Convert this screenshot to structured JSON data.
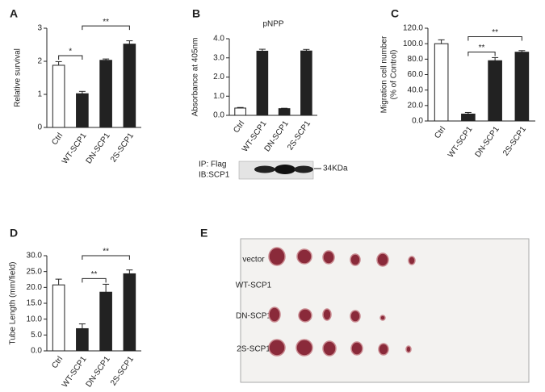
{
  "chart_data": [
    {
      "type": "bar",
      "letter": "A",
      "ylabel": [
        "Relative survival"
      ],
      "categories": [
        "Ctrl",
        "WT-SCP1",
        "DN-SCP1",
        "2S-SCP1"
      ],
      "values": [
        1.88,
        1.02,
        2.03,
        2.52
      ],
      "errors": [
        0.11,
        0.07,
        0.04,
        0.1
      ],
      "colors": [
        "#ffffff",
        "#222222",
        "#222222",
        "#222222"
      ],
      "ylim": [
        0,
        3
      ],
      "yticks": [
        0,
        1,
        2,
        3
      ],
      "annotations": [
        {
          "label": "*",
          "between": [
            "Ctrl",
            "WT-SCP1"
          ]
        },
        {
          "label": "**",
          "between": [
            "WT-SCP1",
            "2S-SCP1"
          ]
        }
      ]
    },
    {
      "type": "bar",
      "letter": "B",
      "title": "pNPP",
      "ylabel": [
        "Absorbance at 405nm"
      ],
      "categories": [
        "Ctrl",
        "WT-SCP1",
        "DN-SCP1",
        "2S-SCP1"
      ],
      "values": [
        0.38,
        3.35,
        0.35,
        3.36
      ],
      "errors": [
        0.03,
        0.1,
        0.02,
        0.08
      ],
      "colors": [
        "#ffffff",
        "#222222",
        "#222222",
        "#222222"
      ],
      "ylim": [
        0,
        4
      ],
      "yticks": [
        {
          "value": 0,
          "label": "0.0"
        },
        {
          "value": 1,
          "label": "1.0"
        },
        {
          "value": 2,
          "label": "2.0"
        },
        {
          "value": 3,
          "label": "3.0"
        },
        {
          "value": 4,
          "label": "4.0"
        }
      ],
      "annotations": []
    },
    {
      "type": "bar",
      "letter": "C",
      "ylabel": [
        "Migration cell number",
        "(% of Control)"
      ],
      "categories": [
        "Ctrl",
        "WT-SCP1",
        "DN-SCP1",
        "2S-SCP1"
      ],
      "values": [
        100,
        9,
        78,
        89
      ],
      "errors": [
        5,
        2,
        4,
        2
      ],
      "colors": [
        "#ffffff",
        "#222222",
        "#222222",
        "#222222"
      ],
      "ylim": [
        0,
        120
      ],
      "yticks": [
        {
          "value": 0,
          "label": "0.0"
        },
        {
          "value": 20,
          "label": "20.0"
        },
        {
          "value": 40,
          "label": "40.0"
        },
        {
          "value": 60,
          "label": "60.0"
        },
        {
          "value": 80,
          "label": "80.0"
        },
        {
          "value": 100,
          "label": "100.0"
        },
        {
          "value": 120,
          "label": "120.0"
        }
      ],
      "annotations": [
        {
          "label": "**",
          "between": [
            "WT-SCP1",
            "DN-SCP1"
          ]
        },
        {
          "label": "**",
          "between": [
            "WT-SCP1",
            "2S-SCP1"
          ]
        }
      ]
    },
    {
      "type": "bar",
      "letter": "D",
      "ylabel": [
        "Tube Length (mm/field)"
      ],
      "categories": [
        "Ctrl",
        "WT-SCP1",
        "DN-SCP1",
        "2S-SCP1"
      ],
      "values": [
        20.8,
        7,
        18.5,
        24.3
      ],
      "errors": [
        1.8,
        1.5,
        2.5,
        1.2
      ],
      "colors": [
        "#ffffff",
        "#222222",
        "#222222",
        "#222222"
      ],
      "ylim": [
        0,
        30
      ],
      "yticks": [
        {
          "value": 0,
          "label": "0.0"
        },
        {
          "value": 5,
          "label": "5.0"
        },
        {
          "value": 10,
          "label": "10.0"
        },
        {
          "value": 15,
          "label": "15.0"
        },
        {
          "value": 20,
          "label": "20.0"
        },
        {
          "value": 25,
          "label": "25.0"
        },
        {
          "value": 30,
          "label": "30.0"
        }
      ],
      "annotations": [
        {
          "label": "**",
          "between": [
            "WT-SCP1",
            "DN-SCP1"
          ]
        },
        {
          "label": "**",
          "between": [
            "WT-SCP1",
            "2S-SCP1"
          ]
        }
      ]
    }
  ],
  "blot": {
    "labels": [
      "IP: Flag",
      "IB:SCP1"
    ],
    "marker": "34KDa"
  },
  "photo": {
    "letter": "E",
    "rows": [
      "vector",
      "WT-SCP1",
      "DN-SCP1",
      "2S-SCP1"
    ]
  }
}
